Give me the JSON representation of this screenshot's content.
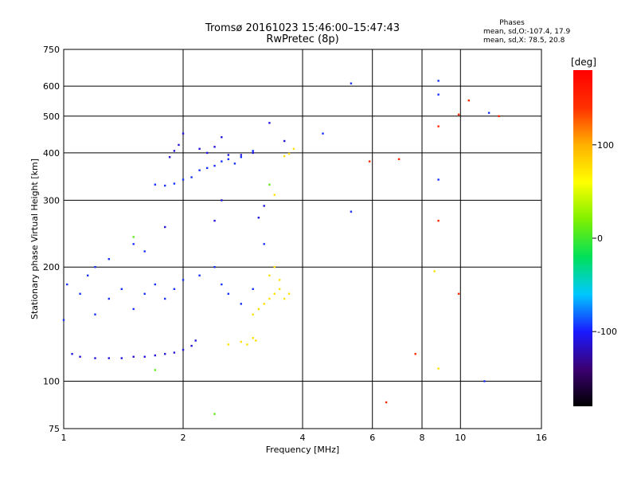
{
  "chart_data": {
    "type": "scatter",
    "title": "Tromsø 20161023 15:46:00–15:47:43",
    "subtitle": "RwPretec (8p)",
    "xlabel": "Frequency [MHz]",
    "ylabel": "Stationary phase Virtual Height [km]",
    "x_scale": "log",
    "y_scale": "log",
    "xlim": [
      1,
      16
    ],
    "ylim": [
      75,
      750
    ],
    "x_ticks": [
      1,
      2,
      4,
      6,
      8,
      10,
      16
    ],
    "y_ticks": [
      75,
      100,
      200,
      300,
      400,
      500,
      600,
      750
    ],
    "phases": {
      "title": "Phases",
      "line1": "mean, sd,O:-107.4, 17.9",
      "line2": "mean, sd,X:  78.5, 20.8"
    },
    "colorbar": {
      "label": "[deg]",
      "min": -180,
      "max": 180,
      "ticks": [
        100,
        0,
        -100
      ],
      "colors": [
        "#000000",
        "#3b0072",
        "#1a1aff",
        "#00c8ff",
        "#00e05a",
        "#7ff000",
        "#ffff00",
        "#ffb000",
        "#ff3000",
        "#ff0000"
      ]
    },
    "series": [
      {
        "points": [
          [
            1.05,
            118
          ],
          [
            1.1,
            116
          ],
          [
            1.2,
            115
          ],
          [
            1.3,
            115
          ],
          [
            1.4,
            115
          ],
          [
            1.5,
            116
          ],
          [
            1.6,
            116
          ],
          [
            1.7,
            117
          ],
          [
            1.8,
            118
          ],
          [
            1.9,
            119
          ],
          [
            2.0,
            121
          ],
          [
            2.1,
            124
          ],
          [
            2.15,
            128
          ],
          [
            1.85,
            390
          ],
          [
            1.9,
            405
          ],
          [
            1.95,
            420
          ],
          [
            2.0,
            450
          ],
          [
            2.2,
            410
          ],
          [
            2.3,
            400
          ],
          [
            2.4,
            415
          ],
          [
            2.5,
            440
          ],
          [
            2.6,
            395
          ],
          [
            2.8,
            395
          ],
          [
            3.0,
            400
          ],
          [
            3.3,
            480
          ],
          [
            3.6,
            430
          ],
          [
            3.2,
            290
          ],
          [
            3.1,
            270
          ],
          [
            2.5,
            300
          ],
          [
            2.4,
            265
          ],
          [
            1.8,
            255
          ]
        ],
        "phase": -110
      },
      {
        "points": [
          [
            1.7,
            330
          ],
          [
            1.8,
            328
          ],
          [
            1.9,
            332
          ],
          [
            2.0,
            340
          ],
          [
            2.1,
            345
          ],
          [
            2.2,
            360
          ],
          [
            2.3,
            365
          ],
          [
            2.4,
            370
          ],
          [
            2.5,
            380
          ],
          [
            2.6,
            385
          ],
          [
            2.7,
            375
          ],
          [
            2.8,
            390
          ],
          [
            3.0,
            405
          ],
          [
            1.02,
            180
          ],
          [
            1.1,
            170
          ],
          [
            1.15,
            190
          ],
          [
            1.2,
            150
          ],
          [
            1.3,
            165
          ],
          [
            1.4,
            175
          ],
          [
            1.5,
            155
          ],
          [
            1.6,
            170
          ],
          [
            1.7,
            180
          ],
          [
            1.8,
            165
          ],
          [
            1.9,
            175
          ],
          [
            2.0,
            185
          ],
          [
            2.2,
            190
          ],
          [
            2.4,
            200
          ],
          [
            2.5,
            180
          ],
          [
            2.6,
            170
          ],
          [
            2.8,
            160
          ],
          [
            3.0,
            175
          ],
          [
            3.2,
            230
          ],
          [
            1.0,
            145
          ],
          [
            1.2,
            200
          ],
          [
            1.3,
            210
          ],
          [
            1.5,
            230
          ],
          [
            1.6,
            220
          ],
          [
            4.5,
            450
          ],
          [
            5.3,
            610
          ],
          [
            5.3,
            280
          ],
          [
            8.8,
            620
          ],
          [
            8.8,
            570
          ],
          [
            8.8,
            340
          ],
          [
            11.8,
            510
          ],
          [
            11.5,
            100
          ]
        ],
        "phase": -95
      },
      {
        "points": [
          [
            3.0,
            150
          ],
          [
            3.1,
            155
          ],
          [
            3.2,
            160
          ],
          [
            3.3,
            165
          ],
          [
            3.4,
            170
          ],
          [
            3.5,
            175
          ],
          [
            3.6,
            165
          ],
          [
            3.7,
            170
          ],
          [
            3.3,
            190
          ],
          [
            3.4,
            200
          ],
          [
            3.5,
            185
          ],
          [
            2.6,
            125
          ],
          [
            2.8,
            127
          ],
          [
            3.0,
            130
          ],
          [
            3.05,
            128
          ],
          [
            2.9,
            125
          ],
          [
            3.4,
            310
          ],
          [
            3.6,
            392
          ],
          [
            3.7,
            398
          ],
          [
            3.8,
            410
          ],
          [
            8.8,
            108
          ],
          [
            8.6,
            195
          ]
        ],
        "phase": 75
      },
      {
        "points": [
          [
            2.4,
            82
          ],
          [
            1.7,
            107
          ],
          [
            3.3,
            330
          ],
          [
            1.5,
            240
          ]
        ],
        "phase": 10
      },
      {
        "points": [
          [
            6.5,
            88
          ],
          [
            8.8,
            265
          ],
          [
            9.9,
            505
          ],
          [
            9.9,
            170
          ],
          [
            10.5,
            550
          ],
          [
            12.5,
            500
          ],
          [
            5.9,
            380
          ],
          [
            7.0,
            385
          ],
          [
            7.7,
            118
          ],
          [
            8.8,
            470
          ]
        ],
        "phase": 150
      }
    ]
  }
}
